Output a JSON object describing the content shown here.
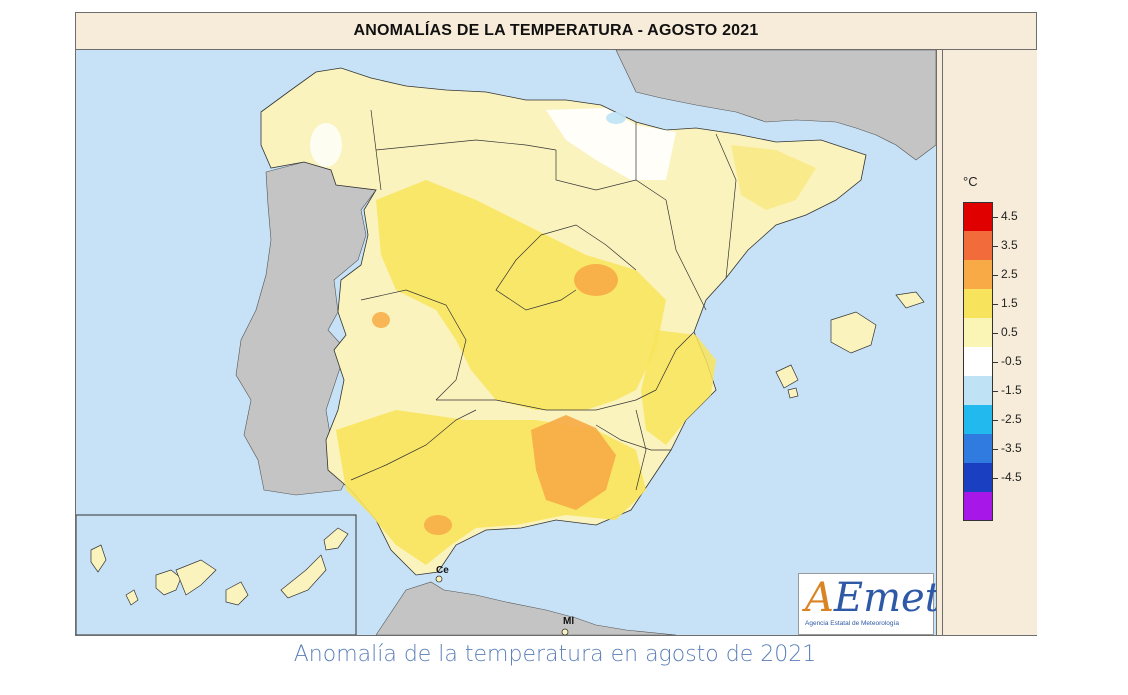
{
  "map": {
    "title": "ANOMALÍAS DE LA TEMPERATURA - AGOSTO 2021",
    "caption": "Anomalía de la temperatura en agosto de 2021",
    "place_labels": [
      "Ce",
      "Ml"
    ],
    "legend": {
      "unit": "°C",
      "classes": [
        {
          "label": "4.5",
          "color": "#e00000"
        },
        {
          "label": "3.5",
          "color": "#f26b3a"
        },
        {
          "label": "2.5",
          "color": "#f7aa45"
        },
        {
          "label": "1.5",
          "color": "#f8e45c"
        },
        {
          "label": "0.5",
          "color": "#fbf5b5"
        },
        {
          "label": "-0.5",
          "color": "#ffffff"
        },
        {
          "label": "-1.5",
          "color": "#bfe3f5"
        },
        {
          "label": "-2.5",
          "color": "#22b9ef"
        },
        {
          "label": "-3.5",
          "color": "#2f7be0"
        },
        {
          "label": "-4.5",
          "color": "#1a3fc1"
        },
        {
          "label": "",
          "color": "#a617e8"
        }
      ]
    },
    "logo": {
      "text_a": "A",
      "text_rest": "Emet",
      "subtitle": "Agencia Estatal de Meteorología"
    },
    "colors": {
      "sea": "#c7e2f6",
      "neighbor_land": "#c4c4c4",
      "panel_bg": "#f7ecd9",
      "border_lines": "#333333"
    }
  }
}
